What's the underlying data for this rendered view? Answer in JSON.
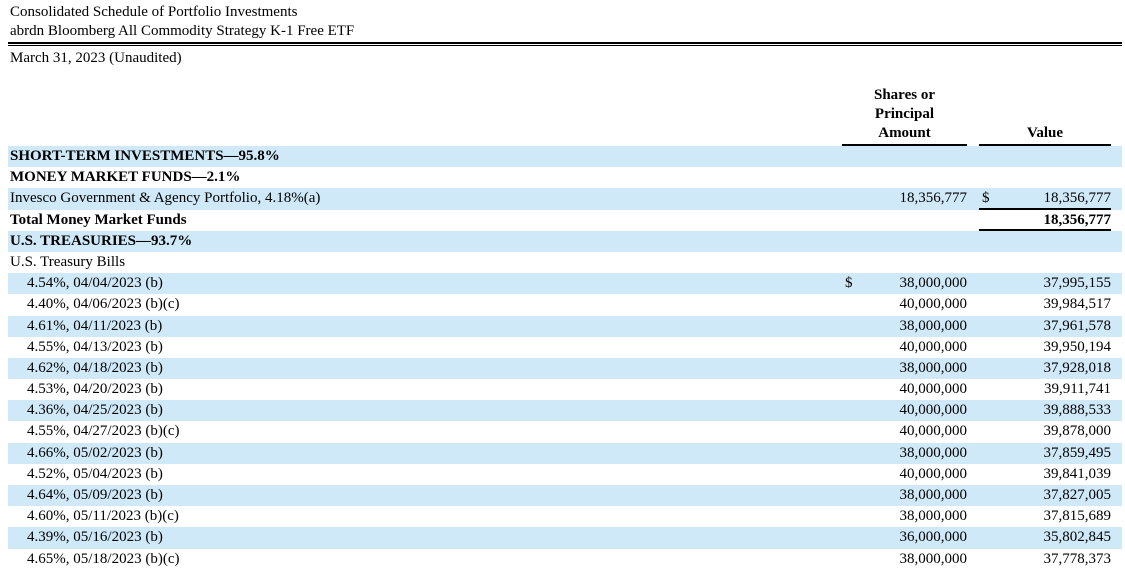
{
  "header": {
    "title_line1": "Consolidated Schedule of Portfolio Investments",
    "title_line2": "abrdn Bloomberg All Commodity Strategy K-1 Free ETF",
    "date_line": "March 31, 2023 (Unaudited)"
  },
  "columns": {
    "shares_header": "Shares or\nPrincipal\nAmount",
    "value_header": "Value"
  },
  "table": {
    "stripe_color": "#cfe9f8",
    "rows": [
      {
        "label": "SHORT-TERM INVESTMENTS—95.8%",
        "bold": true
      },
      {
        "label": "MONEY MARKET FUNDS—2.1%",
        "bold": true
      },
      {
        "label": "Invesco Government & Agency Portfolio, 4.18%(a)",
        "shares": "18,356,777",
        "value": "18,356,777",
        "value_dollar": true,
        "value_rule_below": true
      },
      {
        "label": "Total Money Market Funds",
        "bold": true,
        "value": "18,356,777",
        "value_bold": true,
        "value_rule_below": true
      },
      {
        "label": "U.S. TREASURIES—93.7%",
        "bold": true
      },
      {
        "label": "U.S. Treasury Bills"
      },
      {
        "label": "4.54%, 04/04/2023 (b)",
        "indent": true,
        "shares": "38,000,000",
        "shares_dollar": true,
        "value": "37,995,155"
      },
      {
        "label": "4.40%, 04/06/2023 (b)(c)",
        "indent": true,
        "shares": "40,000,000",
        "value": "39,984,517"
      },
      {
        "label": "4.61%, 04/11/2023 (b)",
        "indent": true,
        "shares": "38,000,000",
        "value": "37,961,578"
      },
      {
        "label": "4.55%, 04/13/2023 (b)",
        "indent": true,
        "shares": "40,000,000",
        "value": "39,950,194"
      },
      {
        "label": "4.62%, 04/18/2023 (b)",
        "indent": true,
        "shares": "38,000,000",
        "value": "37,928,018"
      },
      {
        "label": "4.53%, 04/20/2023 (b)",
        "indent": true,
        "shares": "40,000,000",
        "value": "39,911,741"
      },
      {
        "label": "4.36%, 04/25/2023 (b)",
        "indent": true,
        "shares": "40,000,000",
        "value": "39,888,533"
      },
      {
        "label": "4.55%, 04/27/2023 (b)(c)",
        "indent": true,
        "shares": "40,000,000",
        "value": "39,878,000"
      },
      {
        "label": "4.66%, 05/02/2023 (b)",
        "indent": true,
        "shares": "38,000,000",
        "value": "37,859,495"
      },
      {
        "label": "4.52%, 05/04/2023 (b)",
        "indent": true,
        "shares": "40,000,000",
        "value": "39,841,039"
      },
      {
        "label": "4.64%, 05/09/2023 (b)",
        "indent": true,
        "shares": "38,000,000",
        "value": "37,827,005"
      },
      {
        "label": "4.60%, 05/11/2023 (b)(c)",
        "indent": true,
        "shares": "38,000,000",
        "value": "37,815,689"
      },
      {
        "label": "4.39%, 05/16/2023 (b)",
        "indent": true,
        "shares": "36,000,000",
        "value": "35,802,845"
      },
      {
        "label": "4.65%, 05/18/2023 (b)(c)",
        "indent": true,
        "shares": "38,000,000",
        "value": "37,778,373"
      }
    ]
  }
}
